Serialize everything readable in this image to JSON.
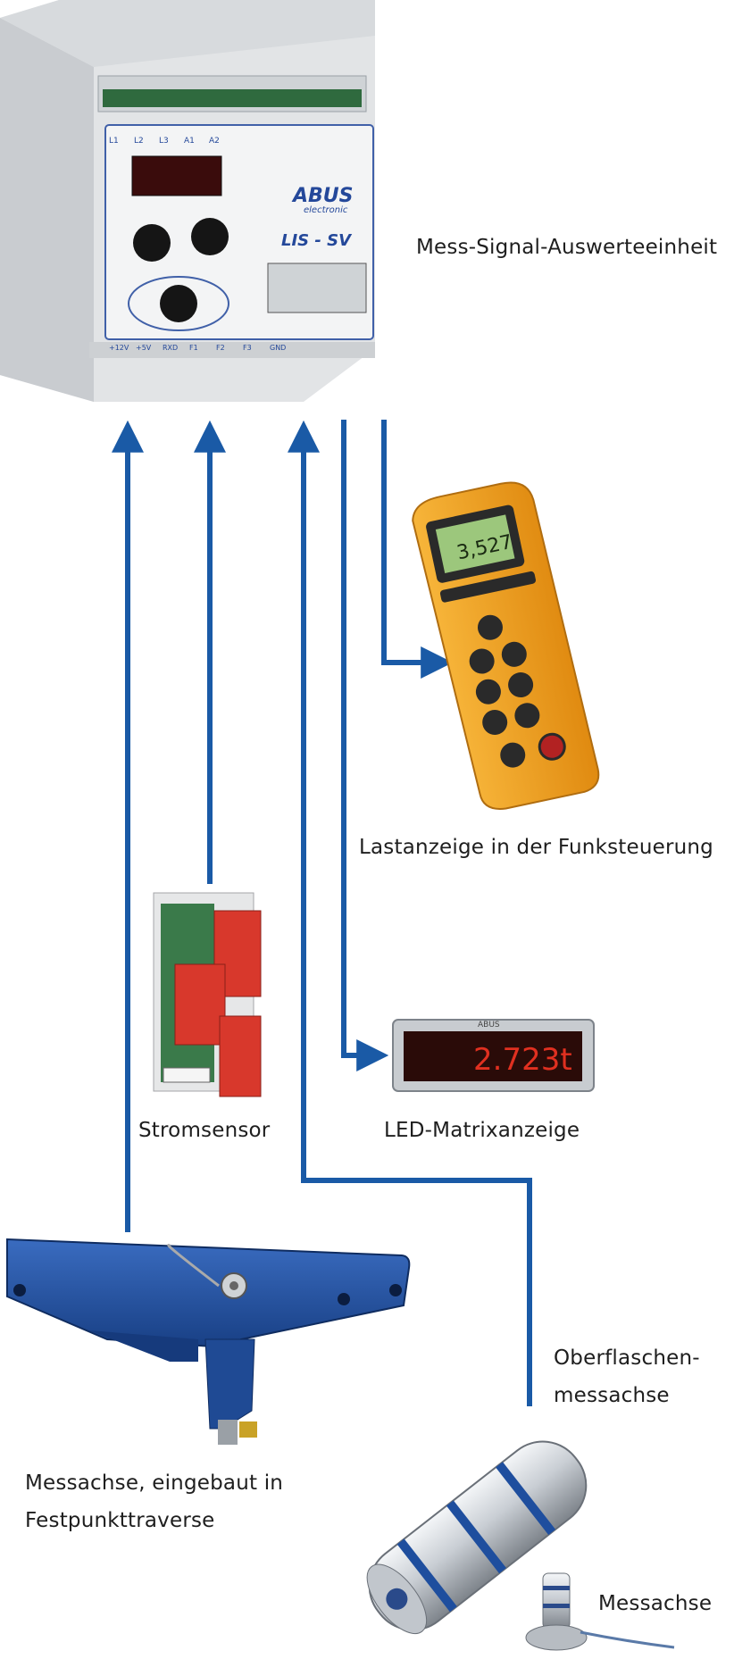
{
  "labels": {
    "unit": "Mess-Signal-Auswerteeinheit",
    "remote": "Lastanzeige in der Funksteuerung",
    "current_sensor": "Stromsensor",
    "led_display": "LED-Matrixanzeige",
    "surface_axle_line1": "Oberflaschen-",
    "surface_axle_line2": "messachse",
    "fixed_axle_line1": "Messachse, eingebaut in",
    "fixed_axle_line2": "Festpunkttraverse",
    "small_axle": "Messachse"
  },
  "device": {
    "brand": "ABUS",
    "brand_sub": "electronic",
    "model": "LIS - SV",
    "terminals_top": [
      "L1",
      "L2",
      "L3",
      "A1",
      "A2"
    ],
    "terminals_bottom": [
      "+12V",
      "+5V",
      "RXD",
      "F1",
      "F2",
      "F3",
      "GND"
    ]
  },
  "remote_screen": {
    "value": "3,527"
  },
  "led_screen": {
    "brand": "ABUS",
    "value": "2.723t"
  },
  "colors": {
    "connector": "#1a5aa6",
    "remote_body": "#f0a020",
    "sensor_red": "#d8382c",
    "axle_blue": "#1e4e9e",
    "led_text": "#e03020"
  }
}
